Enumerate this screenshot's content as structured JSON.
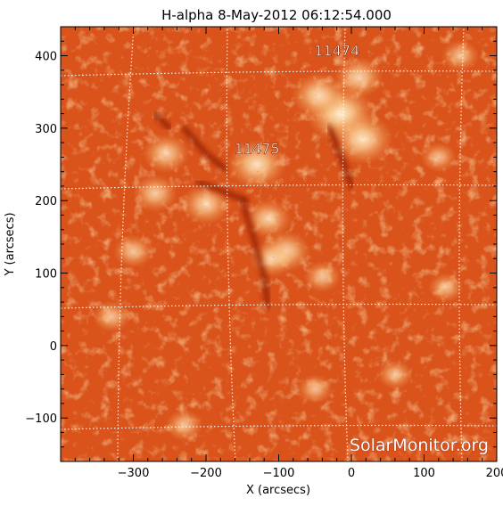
{
  "chart_data": {
    "type": "heatmap",
    "title": "H-alpha  8-May-2012 06:12:54.000",
    "xlabel": "X (arcsecs)",
    "ylabel": "Y (arcsecs)",
    "xlim": [
      -400,
      200
    ],
    "ylim": [
      -160,
      440
    ],
    "x_ticks": [
      -300,
      -200,
      -100,
      0,
      100,
      200
    ],
    "y_ticks": [
      -100,
      0,
      100,
      200,
      300,
      400
    ],
    "x_tick_labels": [
      "−300",
      "−200",
      "−100",
      "0",
      "100",
      "200"
    ],
    "y_tick_labels": [
      "−100",
      "0",
      "100",
      "200",
      "300",
      "400"
    ],
    "grid": true,
    "colormap": [
      "#b4280a",
      "#d84f12",
      "#ee7a2a",
      "#f6a05a",
      "#fbd9a6"
    ],
    "background_color": "#d9531b",
    "bright_regions": [
      {
        "x": -15,
        "y": 320,
        "strength": 1.0
      },
      {
        "x": -45,
        "y": 345,
        "strength": 0.7
      },
      {
        "x": 15,
        "y": 285,
        "strength": 0.85
      },
      {
        "x": 10,
        "y": 370,
        "strength": 0.6
      },
      {
        "x": -130,
        "y": 250,
        "strength": 0.8
      },
      {
        "x": -200,
        "y": 195,
        "strength": 0.6
      },
      {
        "x": -255,
        "y": 265,
        "strength": 0.55
      },
      {
        "x": -270,
        "y": 210,
        "strength": 0.5
      },
      {
        "x": -115,
        "y": 175,
        "strength": 0.55
      },
      {
        "x": -90,
        "y": 130,
        "strength": 0.6
      },
      {
        "x": -110,
        "y": 120,
        "strength": 0.5
      },
      {
        "x": -300,
        "y": 130,
        "strength": 0.4
      },
      {
        "x": -40,
        "y": 95,
        "strength": 0.35
      },
      {
        "x": 130,
        "y": 80,
        "strength": 0.3
      },
      {
        "x": -330,
        "y": 40,
        "strength": 0.35
      },
      {
        "x": -50,
        "y": -60,
        "strength": 0.3
      },
      {
        "x": 60,
        "y": -40,
        "strength": 0.3
      },
      {
        "x": -230,
        "y": -110,
        "strength": 0.35
      },
      {
        "x": 150,
        "y": 400,
        "strength": 0.35
      },
      {
        "x": 120,
        "y": 260,
        "strength": 0.3
      }
    ],
    "dark_filaments": [
      {
        "points": [
          [
            -210,
            225
          ],
          [
            -170,
            210
          ],
          [
            -145,
            200
          ]
        ]
      },
      {
        "points": [
          [
            -150,
            200
          ],
          [
            -135,
            150
          ],
          [
            -120,
            95
          ],
          [
            -115,
            55
          ]
        ]
      },
      {
        "points": [
          [
            -230,
            300
          ],
          [
            -200,
            265
          ],
          [
            -175,
            245
          ]
        ]
      },
      {
        "points": [
          [
            -30,
            300
          ],
          [
            -10,
            250
          ],
          [
            0,
            220
          ]
        ]
      },
      {
        "points": [
          [
            -270,
            320
          ],
          [
            -250,
            300
          ]
        ]
      }
    ],
    "annotations": [
      {
        "text": "11474",
        "x": -20,
        "y": 400
      },
      {
        "text": "11475",
        "x": -130,
        "y": 265
      }
    ]
  },
  "watermark": "SolarMonitor.org"
}
